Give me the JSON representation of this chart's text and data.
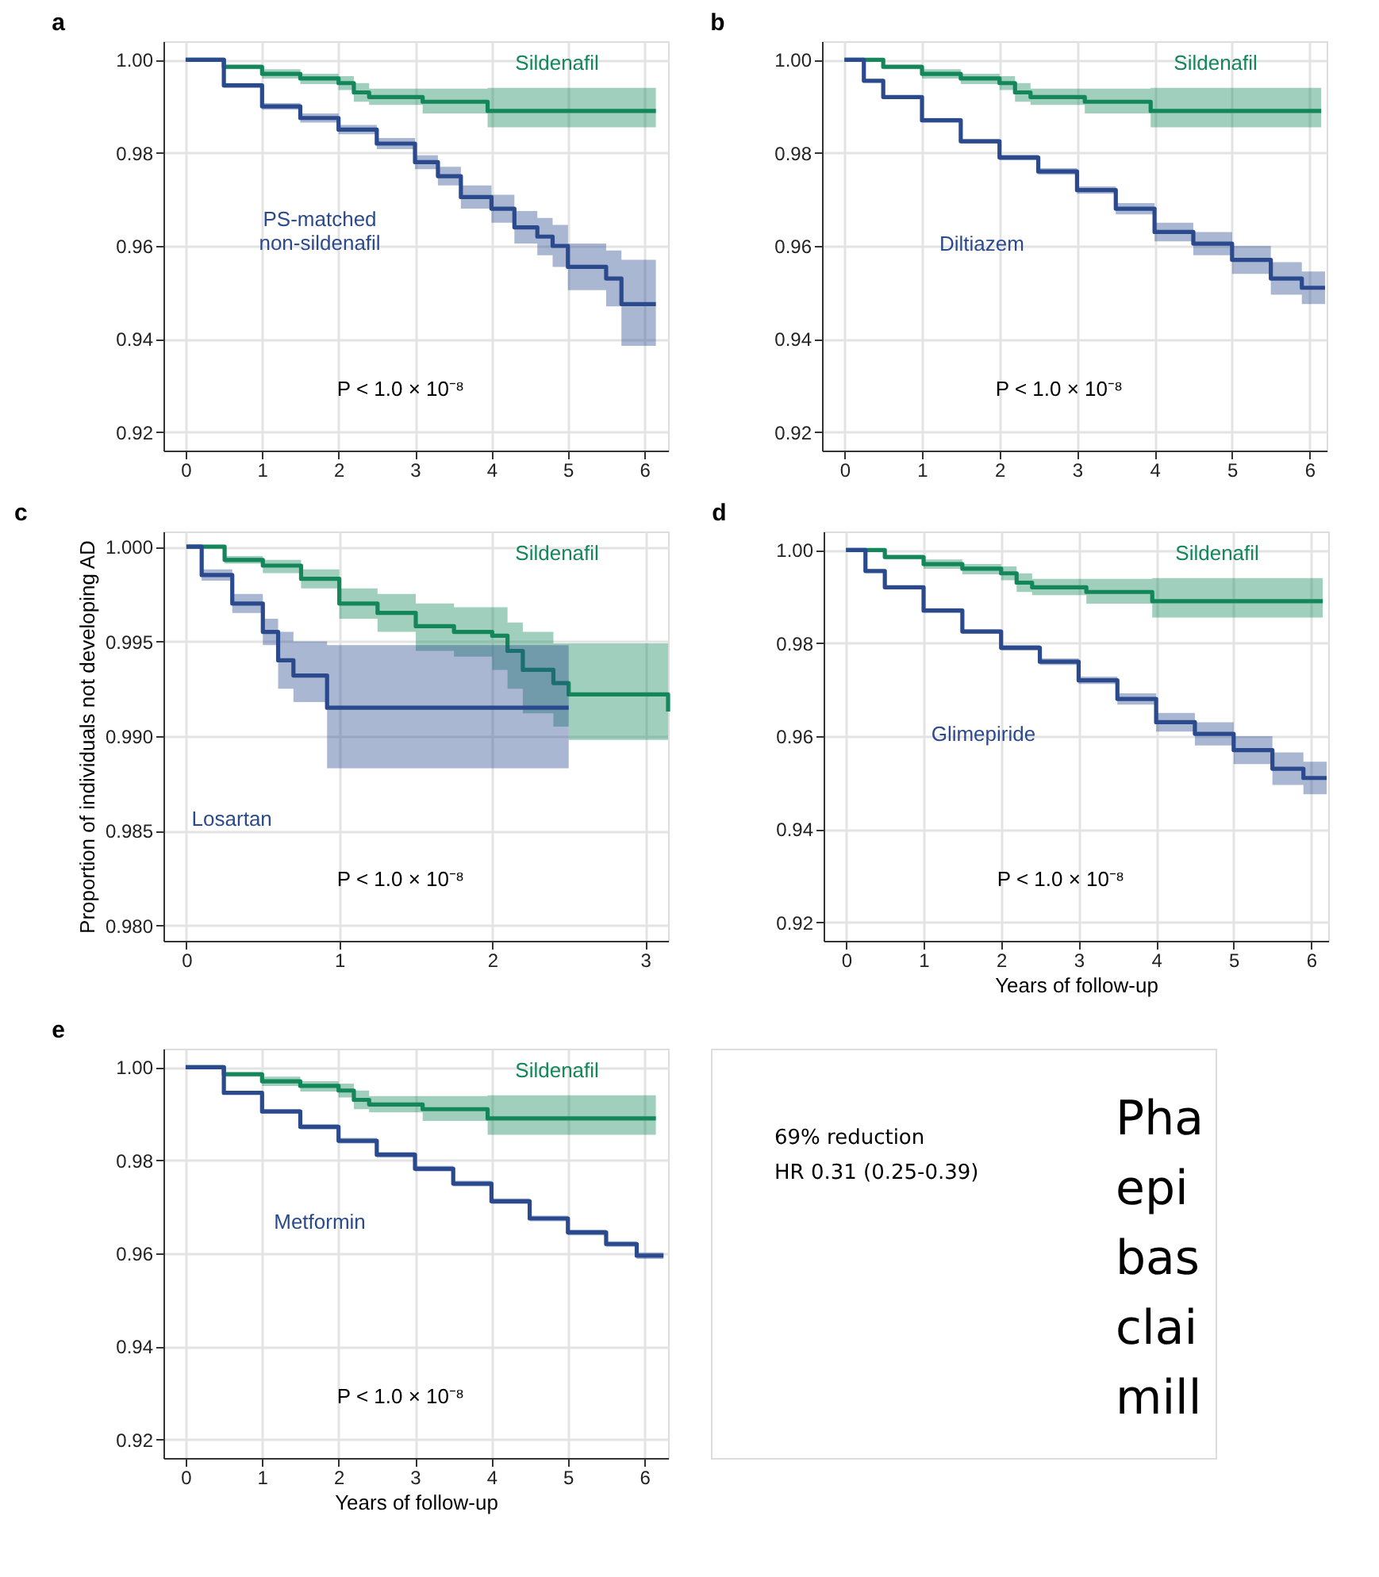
{
  "chart_data": [
    {
      "type": "step",
      "title": "a",
      "xlim": [
        -0.29,
        6.31
      ],
      "ylim": [
        0.916,
        1.004
      ],
      "xticks": [
        0,
        1,
        2,
        3,
        4,
        5,
        6
      ],
      "yticks": [
        {
          "value": 0.92,
          "label": "0.92"
        },
        {
          "value": 0.94,
          "label": "0.94"
        },
        {
          "value": 0.96,
          "label": "0.96"
        },
        {
          "value": 0.98,
          "label": "0.98"
        },
        {
          "value": 1.0,
          "label": "1.00"
        }
      ],
      "grid": true,
      "legend": false,
      "annotations": [
        "P < 1.0 × 10⁻⁸"
      ],
      "series": [
        {
          "name": "Sildenafil",
          "color": "#13875a",
          "x": [
            0,
            0.5,
            1,
            1.5,
            2,
            2.2,
            2.4,
            3.1,
            3.95,
            6.15
          ],
          "values": [
            1,
            0.9985,
            0.997,
            0.996,
            0.995,
            0.993,
            0.992,
            0.991,
            0.989,
            0.989
          ],
          "lower": [
            1,
            0.998,
            0.996,
            0.9948,
            0.9935,
            0.991,
            0.9903,
            0.9885,
            0.9855,
            0.9855
          ],
          "upper": [
            1,
            0.999,
            0.998,
            0.997,
            0.9965,
            0.995,
            0.9938,
            0.9938,
            0.994,
            0.994
          ]
        },
        {
          "name": "PS-matched non-sildenafil",
          "color": "#2b4a8e",
          "x": [
            0,
            0.5,
            1,
            1.5,
            2,
            2.5,
            3,
            3.3,
            3.6,
            4,
            4.3,
            4.6,
            4.8,
            5,
            5.5,
            5.7,
            6.15
          ],
          "values": [
            1,
            0.9945,
            0.99,
            0.9875,
            0.985,
            0.982,
            0.978,
            0.975,
            0.9705,
            0.968,
            0.964,
            0.962,
            0.96,
            0.9555,
            0.953,
            0.9475,
            0.9475
          ],
          "lower": [
            1,
            0.994,
            0.9893,
            0.9865,
            0.984,
            0.9808,
            0.9765,
            0.973,
            0.968,
            0.965,
            0.9605,
            0.958,
            0.9555,
            0.9505,
            0.947,
            0.9385,
            0.9385
          ],
          "upper": [
            1,
            0.995,
            0.9907,
            0.9885,
            0.986,
            0.9832,
            0.9795,
            0.977,
            0.973,
            0.971,
            0.9675,
            0.966,
            0.9645,
            0.9605,
            0.959,
            0.957,
            0.957
          ]
        }
      ]
    },
    {
      "type": "step",
      "title": "b",
      "xlim": [
        -0.29,
        6.22
      ],
      "ylim": [
        0.916,
        1.004
      ],
      "xticks": [
        0,
        1,
        2,
        3,
        4,
        5,
        6
      ],
      "yticks": [
        {
          "value": 0.92,
          "label": "0.92"
        },
        {
          "value": 0.94,
          "label": "0.94"
        },
        {
          "value": 0.96,
          "label": "0.96"
        },
        {
          "value": 0.98,
          "label": "0.98"
        },
        {
          "value": 1.0,
          "label": "1.00"
        }
      ],
      "grid": true,
      "legend": false,
      "annotations": [
        "P < 1.0 × 10⁻⁸"
      ],
      "series": [
        {
          "name": "Sildenafil",
          "color": "#13875a",
          "x": [
            0,
            0.5,
            1,
            1.5,
            2,
            2.2,
            2.4,
            3.1,
            3.95,
            6.15
          ],
          "values": [
            1,
            0.9985,
            0.997,
            0.996,
            0.995,
            0.993,
            0.992,
            0.991,
            0.989,
            0.989
          ],
          "lower": [
            1,
            0.998,
            0.996,
            0.9948,
            0.9935,
            0.991,
            0.9903,
            0.9885,
            0.9855,
            0.9855
          ],
          "upper": [
            1,
            0.999,
            0.998,
            0.997,
            0.9965,
            0.995,
            0.9938,
            0.9938,
            0.994,
            0.994
          ]
        },
        {
          "name": "Diltiazem",
          "color": "#2b4a8e",
          "x": [
            0,
            0.25,
            0.5,
            1,
            1.5,
            2,
            2.5,
            3,
            3.5,
            4,
            4.5,
            5,
            5.5,
            5.9,
            6.2
          ],
          "values": [
            1,
            0.9955,
            0.992,
            0.987,
            0.9825,
            0.979,
            0.976,
            0.972,
            0.968,
            0.963,
            0.9605,
            0.957,
            0.953,
            0.951,
            0.951
          ],
          "lower": [
            1,
            0.9952,
            0.9916,
            0.9865,
            0.982,
            0.9784,
            0.9753,
            0.9712,
            0.9668,
            0.961,
            0.958,
            0.954,
            0.9495,
            0.9475,
            0.9475
          ],
          "upper": [
            1,
            0.9958,
            0.9924,
            0.9875,
            0.983,
            0.9796,
            0.9767,
            0.9728,
            0.9692,
            0.965,
            0.963,
            0.96,
            0.9565,
            0.9545,
            0.9545
          ]
        }
      ]
    },
    {
      "type": "step",
      "title": "c",
      "ylabel": "Proportion of individuals not developing AD",
      "xlim": [
        -0.15,
        3.15
      ],
      "ylim": [
        0.9792,
        1.0008
      ],
      "xticks": [
        0,
        1,
        2,
        3
      ],
      "yticks": [
        {
          "value": 0.98,
          "label": "0.980"
        },
        {
          "value": 0.985,
          "label": "0.985"
        },
        {
          "value": 0.99,
          "label": "0.990"
        },
        {
          "value": 0.995,
          "label": "0.995"
        },
        {
          "value": 1.0,
          "label": "1.000"
        }
      ],
      "grid": true,
      "legend": false,
      "annotations": [
        "P < 1.0 × 10⁻⁸"
      ],
      "series": [
        {
          "name": "Sildenafil",
          "color": "#13875a",
          "x": [
            0,
            0.25,
            0.5,
            0.75,
            1,
            1.25,
            1.5,
            1.75,
            2,
            2.1,
            2.2,
            2.4,
            2.5,
            3.1,
            3.15
          ],
          "values": [
            1,
            0.9993,
            0.999,
            0.9983,
            0.997,
            0.9965,
            0.9958,
            0.9955,
            0.9953,
            0.9945,
            0.9935,
            0.9928,
            0.9922,
            0.9922,
            0.9913
          ],
          "lower": [
            1,
            0.9991,
            0.9986,
            0.9978,
            0.9962,
            0.9955,
            0.9945,
            0.9942,
            0.9935,
            0.9925,
            0.9912,
            0.9905,
            0.9898,
            0.9898,
            0.988
          ],
          "upper": [
            1,
            0.9995,
            0.9993,
            0.9988,
            0.9978,
            0.9975,
            0.997,
            0.9968,
            0.9968,
            0.996,
            0.9955,
            0.9949,
            0.9949,
            0.9949,
            0.9949
          ]
        },
        {
          "name": "Losartan",
          "color": "#2b4a8e",
          "x": [
            0,
            0.1,
            0.3,
            0.5,
            0.6,
            0.7,
            0.92,
            2.5
          ],
          "values": [
            1,
            0.9985,
            0.997,
            0.9955,
            0.994,
            0.9932,
            0.9915,
            0.9915
          ],
          "lower": [
            1,
            0.9982,
            0.9965,
            0.9948,
            0.9925,
            0.9918,
            0.9883,
            0.9883
          ],
          "upper": [
            1,
            0.9988,
            0.9975,
            0.9962,
            0.9955,
            0.995,
            0.9948,
            0.9948
          ]
        }
      ]
    },
    {
      "type": "step",
      "title": "d",
      "xlabel": "Years of follow-up",
      "xlim": [
        -0.29,
        6.22
      ],
      "ylim": [
        0.916,
        1.004
      ],
      "xticks": [
        0,
        1,
        2,
        3,
        4,
        5,
        6
      ],
      "yticks": [
        {
          "value": 0.92,
          "label": "0.92"
        },
        {
          "value": 0.94,
          "label": "0.94"
        },
        {
          "value": 0.96,
          "label": "0.96"
        },
        {
          "value": 0.98,
          "label": "0.98"
        },
        {
          "value": 1.0,
          "label": "1.00"
        }
      ],
      "grid": true,
      "legend": false,
      "annotations": [
        "P < 1.0 × 10⁻⁸"
      ],
      "series": [
        {
          "name": "Sildenafil",
          "color": "#13875a",
          "x": [
            0,
            0.5,
            1,
            1.5,
            2,
            2.2,
            2.4,
            3.1,
            3.95,
            6.15
          ],
          "values": [
            1,
            0.9985,
            0.997,
            0.996,
            0.995,
            0.993,
            0.992,
            0.991,
            0.989,
            0.989
          ],
          "lower": [
            1,
            0.998,
            0.996,
            0.9948,
            0.9935,
            0.991,
            0.9903,
            0.9885,
            0.9855,
            0.9855
          ],
          "upper": [
            1,
            0.999,
            0.998,
            0.997,
            0.9965,
            0.995,
            0.9938,
            0.9938,
            0.994,
            0.994
          ]
        },
        {
          "name": "Glimepiride",
          "color": "#2b4a8e",
          "x": [
            0,
            0.25,
            0.5,
            1,
            1.5,
            2,
            2.5,
            3,
            3.5,
            4,
            4.5,
            5,
            5.5,
            5.9,
            6.2
          ],
          "values": [
            1,
            0.9955,
            0.992,
            0.987,
            0.9825,
            0.979,
            0.976,
            0.972,
            0.968,
            0.963,
            0.9605,
            0.957,
            0.953,
            0.951,
            0.951
          ],
          "lower": [
            1,
            0.9952,
            0.9916,
            0.9865,
            0.982,
            0.9784,
            0.9753,
            0.9712,
            0.9668,
            0.961,
            0.958,
            0.954,
            0.9495,
            0.9475,
            0.9475
          ],
          "upper": [
            1,
            0.9958,
            0.9924,
            0.9875,
            0.983,
            0.9796,
            0.9767,
            0.9728,
            0.9692,
            0.965,
            0.963,
            0.96,
            0.9565,
            0.9545,
            0.9545
          ]
        }
      ]
    },
    {
      "type": "step",
      "title": "e",
      "xlabel": "Years of follow-up",
      "xlim": [
        -0.29,
        6.31
      ],
      "ylim": [
        0.916,
        1.004
      ],
      "xticks": [
        0,
        1,
        2,
        3,
        4,
        5,
        6
      ],
      "yticks": [
        {
          "value": 0.92,
          "label": "0.92"
        },
        {
          "value": 0.94,
          "label": "0.94"
        },
        {
          "value": 0.96,
          "label": "0.96"
        },
        {
          "value": 0.98,
          "label": "0.98"
        },
        {
          "value": 1.0,
          "label": "1.00"
        }
      ],
      "grid": true,
      "legend": false,
      "annotations": [
        "P < 1.0 × 10⁻⁸"
      ],
      "series": [
        {
          "name": "Sildenafil",
          "color": "#13875a",
          "x": [
            0,
            0.5,
            1,
            1.5,
            2,
            2.2,
            2.4,
            3.1,
            3.95,
            6.15
          ],
          "values": [
            1,
            0.9985,
            0.997,
            0.996,
            0.995,
            0.993,
            0.992,
            0.991,
            0.989,
            0.989
          ],
          "lower": [
            1,
            0.998,
            0.996,
            0.9948,
            0.9935,
            0.991,
            0.9903,
            0.9885,
            0.9855,
            0.9855
          ],
          "upper": [
            1,
            0.999,
            0.998,
            0.997,
            0.9965,
            0.995,
            0.9938,
            0.9938,
            0.994,
            0.994
          ]
        },
        {
          "name": "Metformin",
          "color": "#2b4a8e",
          "x": [
            0,
            0.5,
            1,
            1.5,
            2,
            2.5,
            3,
            3.5,
            4,
            4.5,
            5,
            5.5,
            5.9,
            6.25
          ],
          "values": [
            1,
            0.9945,
            0.9905,
            0.9872,
            0.9842,
            0.9812,
            0.9782,
            0.975,
            0.9712,
            0.9675,
            0.9645,
            0.962,
            0.9595,
            0.9595
          ],
          "lower": [
            1,
            0.9941,
            0.99,
            0.9866,
            0.9836,
            0.9806,
            0.9776,
            0.9744,
            0.9706,
            0.9669,
            0.9639,
            0.9614,
            0.9588,
            0.9588
          ],
          "upper": [
            1,
            0.9949,
            0.991,
            0.9878,
            0.9848,
            0.9818,
            0.9788,
            0.9756,
            0.9718,
            0.9681,
            0.9651,
            0.9626,
            0.9602,
            0.9602
          ]
        }
      ]
    },
    {
      "type": "other",
      "annotations": [
        "69% reduction",
        "HR 0.31 (0.25-0.39)",
        "Pha",
        "epi",
        "bas",
        "clai",
        "mill"
      ]
    }
  ]
}
